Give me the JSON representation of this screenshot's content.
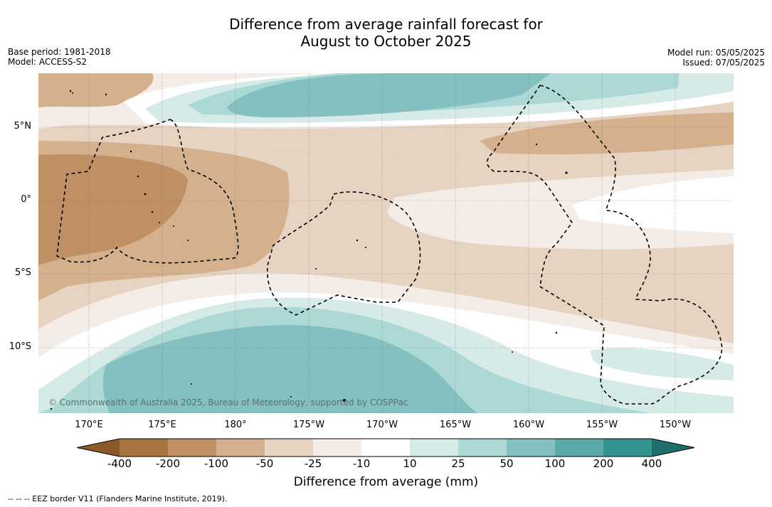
{
  "title_line1": "Difference from average rainfall forecast for",
  "title_line2": "August to October 2025",
  "meta": {
    "base_period": "Base period: 1981-2018",
    "model": "Model: ACCESS-S2",
    "model_run": "Model run: 05/05/2025",
    "issued": "Issued: 07/05/2025"
  },
  "map": {
    "lat_labels": [
      "5°N",
      "0°",
      "5°S",
      "10°S"
    ],
    "lon_labels": [
      "170°E",
      "175°E",
      "180°",
      "175°W",
      "170°W",
      "165°W",
      "160°W",
      "155°W",
      "150°W"
    ],
    "copyright": "© Commonwealth of Australia 2025, Bureau of Meteorology, supported by COSPPac"
  },
  "colorbar": {
    "ticks": [
      "-400",
      "-200",
      "-100",
      "-50",
      "-25",
      "-10",
      "10",
      "25",
      "50",
      "100",
      "200",
      "400"
    ],
    "colors": [
      "#8b5a2b",
      "#a8743f",
      "#bf9064",
      "#d4b08d",
      "#e6d3c2",
      "#f4ece6",
      "#ffffff",
      "#d6ebe8",
      "#acd9d6",
      "#83c0bf",
      "#59aaa8",
      "#35948f",
      "#1f6f6b"
    ],
    "label": "Difference from average (mm)"
  },
  "footnote": "-- -- -- EEZ border V11 (Flanders Marine Institute, 2019)."
}
